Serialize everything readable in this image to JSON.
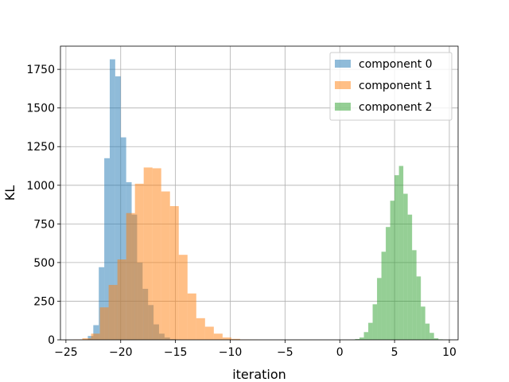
{
  "chart_data": {
    "type": "bar",
    "subtype": "overlapping-histogram",
    "title": "",
    "xlabel": "iteration",
    "ylabel": "KL",
    "xlim": [
      -25.5,
      10.8
    ],
    "ylim": [
      0,
      1900
    ],
    "xticks": [
      -25,
      -20,
      -15,
      -10,
      -5,
      0,
      5,
      10
    ],
    "xtick_labels": [
      "−25",
      "−20",
      "−15",
      "−10",
      "−5",
      "0",
      "5",
      "10"
    ],
    "yticks": [
      0,
      250,
      500,
      750,
      1000,
      1250,
      1500,
      1750
    ],
    "ytick_labels": [
      "0",
      "250",
      "500",
      "750",
      "1000",
      "1250",
      "1500",
      "1750"
    ],
    "grid": true,
    "legend_position": "top-right",
    "bar_opacity": 0.5,
    "series": [
      {
        "name": "component 0",
        "color": "#1f77b4",
        "bin_edges": [
          -23.5,
          -23.0,
          -22.5,
          -22.0,
          -21.5,
          -21.0,
          -20.5,
          -20.0,
          -19.5,
          -19.0,
          -18.5,
          -18.0,
          -17.5,
          -17.0,
          -16.5,
          -16.0,
          -15.5,
          -15.0,
          -14.5
        ],
        "counts": [
          2,
          25,
          95,
          470,
          1175,
          1815,
          1705,
          1310,
          1020,
          810,
          500,
          330,
          225,
          100,
          40,
          15,
          5,
          2
        ]
      },
      {
        "name": "component 1",
        "color": "#ff7f0e",
        "bin_edges": [
          -24.3,
          -23.5,
          -22.7,
          -21.9,
          -21.1,
          -20.3,
          -19.5,
          -18.7,
          -17.9,
          -17.1,
          -16.3,
          -15.5,
          -14.7,
          -13.9,
          -13.1,
          -12.3,
          -11.5,
          -10.7,
          -9.9,
          -9.1,
          -8.3,
          -7.5
        ],
        "counts": [
          2,
          10,
          40,
          210,
          355,
          520,
          820,
          1010,
          1115,
          1110,
          960,
          865,
          550,
          300,
          140,
          85,
          40,
          15,
          6,
          2,
          1
        ]
      },
      {
        "name": "component 2",
        "color": "#2ca02c",
        "bin_edges": [
          1.4,
          1.8,
          2.2,
          2.6,
          3.0,
          3.4,
          3.8,
          4.2,
          4.6,
          5.0,
          5.4,
          5.8,
          6.2,
          6.6,
          7.0,
          7.4,
          7.8,
          8.2,
          8.6,
          9.0,
          9.4
        ],
        "counts": [
          5,
          15,
          50,
          110,
          230,
          400,
          570,
          730,
          900,
          1065,
          1125,
          945,
          810,
          580,
          410,
          215,
          105,
          45,
          10,
          3
        ]
      }
    ]
  }
}
